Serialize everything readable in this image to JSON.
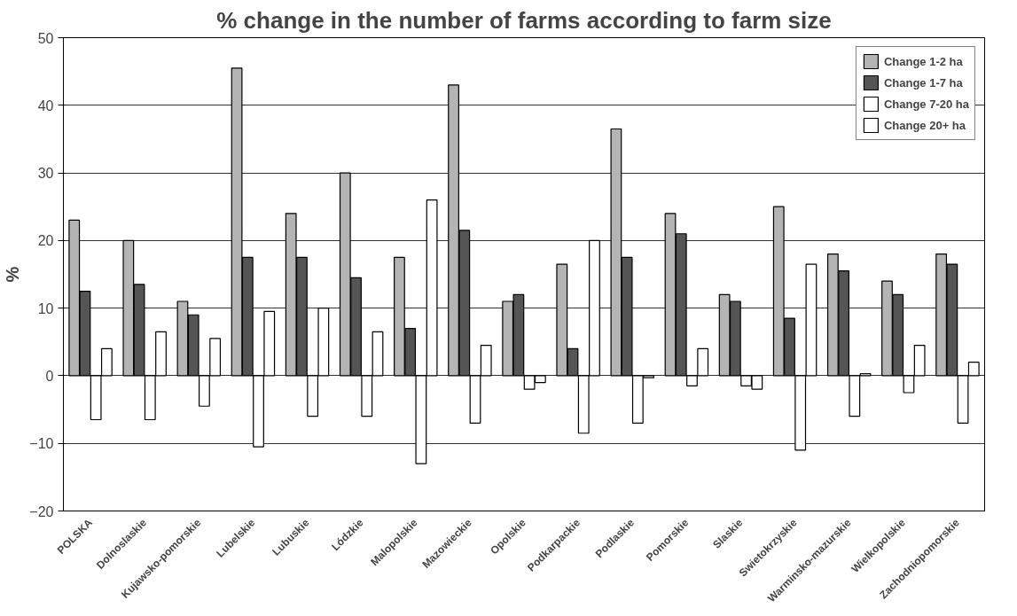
{
  "chart_data": {
    "type": "bar",
    "title": "% change in the number of farms according to farm size",
    "ylabel": "%",
    "categories": [
      "POLSKA",
      "Dolnoslaskie",
      "Kujawsko-pomorskie",
      "Lubelskie",
      "Lubuskie",
      "Lódzkie",
      "Malopolskie",
      "Mazowieckie",
      "Opolskie",
      "Podkarpackie",
      "Podlaskie",
      "Pomorskie",
      "Slaskie",
      "Swietokrzyskie",
      "Warminsko-mazurskie",
      "Wielkopolskie",
      "Zachodniopomorskie"
    ],
    "series": [
      {
        "name": "Change 1-2 ha",
        "color": "#b4b4b4",
        "values": [
          23,
          20,
          11,
          45.5,
          24,
          30,
          17.5,
          43,
          11,
          16.5,
          36.5,
          24,
          12,
          25,
          18,
          14,
          18
        ]
      },
      {
        "name": "Change 1-7 ha",
        "color": "#555555",
        "values": [
          12.5,
          13.5,
          9,
          17.5,
          17.5,
          14.5,
          7,
          21.5,
          12,
          4,
          17.5,
          21,
          11,
          8.5,
          15.5,
          12,
          16.5
        ]
      },
      {
        "name": "Change 7-20 ha",
        "color": "#ffffff",
        "values": [
          -6.5,
          -6.5,
          -4.5,
          -10.5,
          -6,
          -6,
          -13,
          -7,
          -2,
          -8.5,
          -7,
          -1.5,
          -1.5,
          -11,
          -6,
          -2.5,
          -7
        ]
      },
      {
        "name": "Change 20+ ha",
        "color": "#ffffff",
        "values": [
          4,
          6.5,
          5.5,
          9.5,
          10,
          6.5,
          26,
          4.5,
          -1,
          20,
          -0.3,
          4,
          -2,
          16.5,
          0.3,
          4.5,
          2
        ]
      }
    ],
    "ylim": [
      -20,
      50
    ],
    "yticks": [
      -20,
      -10,
      0,
      10,
      20,
      30,
      40,
      50
    ],
    "grid": "y",
    "legend": "top right"
  }
}
